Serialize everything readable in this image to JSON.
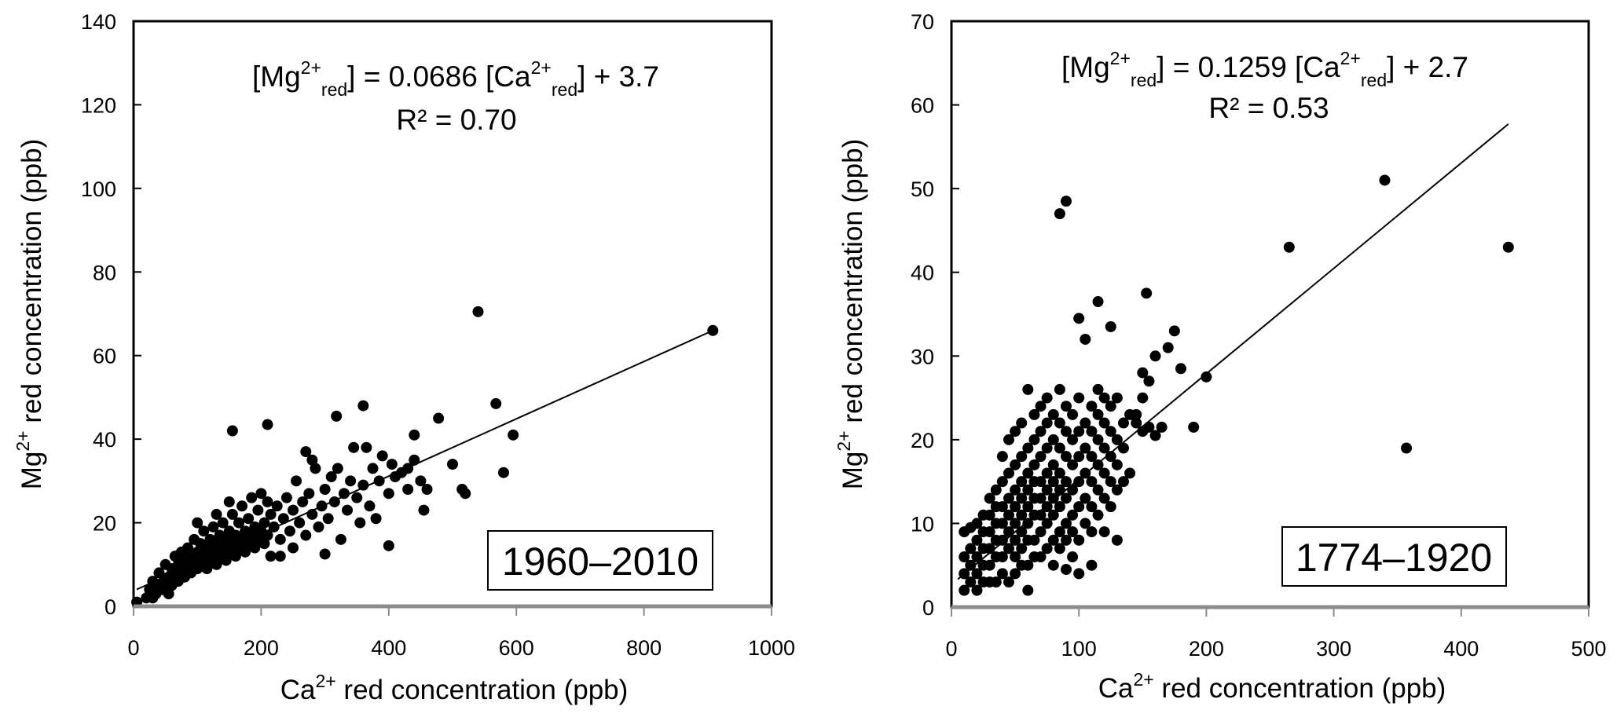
{
  "chart_data": [
    {
      "type": "scatter",
      "panel_label": "1960–2010",
      "xlabel": {
        "base": "Ca",
        "sup": "2+",
        "rest": " red concentration (ppb)"
      },
      "ylabel": {
        "base": "Mg",
        "sup": "2+",
        "rest": " red concentration (ppb)"
      },
      "xlim": [
        0,
        1000
      ],
      "ylim": [
        0,
        140
      ],
      "x_ticks": [
        0,
        200,
        400,
        600,
        800,
        1000
      ],
      "y_ticks": [
        0,
        20,
        40,
        60,
        80,
        100,
        120,
        140
      ],
      "grid": false,
      "equation": {
        "a": "[Mg",
        "sup1": "2+",
        "sub1": "red",
        "b": "] = 0.0686 [Ca",
        "sup2": "2+",
        "sub2": "red",
        "c": "] + 3.7"
      },
      "r2": "R² = 0.70",
      "fit": {
        "slope": 0.0686,
        "intercept": 3.7,
        "x_range": [
          5,
          910
        ]
      },
      "points": [
        [
          5,
          1
        ],
        [
          20,
          2
        ],
        [
          25,
          4
        ],
        [
          30,
          6
        ],
        [
          30,
          2
        ],
        [
          35,
          3
        ],
        [
          40,
          5
        ],
        [
          40,
          8
        ],
        [
          45,
          4
        ],
        [
          50,
          6
        ],
        [
          50,
          10
        ],
        [
          55,
          7
        ],
        [
          55,
          3
        ],
        [
          60,
          9
        ],
        [
          60,
          5
        ],
        [
          65,
          12
        ],
        [
          65,
          8
        ],
        [
          70,
          6
        ],
        [
          70,
          10
        ],
        [
          75,
          13
        ],
        [
          75,
          9
        ],
        [
          80,
          11
        ],
        [
          80,
          7
        ],
        [
          85,
          14
        ],
        [
          85,
          10
        ],
        [
          90,
          12
        ],
        [
          90,
          8
        ],
        [
          95,
          16
        ],
        [
          95,
          11
        ],
        [
          100,
          13
        ],
        [
          100,
          9
        ],
        [
          100,
          20
        ],
        [
          105,
          15
        ],
        [
          105,
          10
        ],
        [
          110,
          18
        ],
        [
          110,
          12
        ],
        [
          115,
          14
        ],
        [
          115,
          9
        ],
        [
          120,
          16
        ],
        [
          120,
          11
        ],
        [
          125,
          19
        ],
        [
          125,
          13
        ],
        [
          130,
          15
        ],
        [
          130,
          10
        ],
        [
          130,
          22
        ],
        [
          135,
          17
        ],
        [
          135,
          12
        ],
        [
          140,
          14
        ],
        [
          140,
          20
        ],
        [
          145,
          16
        ],
        [
          145,
          11
        ],
        [
          150,
          18
        ],
        [
          150,
          13
        ],
        [
          150,
          25
        ],
        [
          155,
          22
        ],
        [
          155,
          15
        ],
        [
          160,
          17
        ],
        [
          160,
          12
        ],
        [
          165,
          20
        ],
        [
          165,
          14
        ],
        [
          170,
          24
        ],
        [
          170,
          16
        ],
        [
          175,
          18
        ],
        [
          175,
          13
        ],
        [
          180,
          21
        ],
        [
          180,
          15
        ],
        [
          185,
          26
        ],
        [
          185,
          17
        ],
        [
          190,
          19
        ],
        [
          190,
          14
        ],
        [
          195,
          23
        ],
        [
          195,
          16
        ],
        [
          200,
          27
        ],
        [
          200,
          18
        ],
        [
          205,
          20
        ],
        [
          205,
          15
        ],
        [
          210,
          25
        ],
        [
          210,
          17
        ],
        [
          215,
          22
        ],
        [
          215,
          12
        ],
        [
          220,
          19
        ],
        [
          225,
          24
        ],
        [
          230,
          16
        ],
        [
          230,
          12
        ],
        [
          235,
          21
        ],
        [
          240,
          26
        ],
        [
          245,
          18
        ],
        [
          250,
          23
        ],
        [
          250,
          14
        ],
        [
          255,
          30
        ],
        [
          260,
          20
        ],
        [
          265,
          25
        ],
        [
          270,
          17
        ],
        [
          270,
          37
        ],
        [
          275,
          27
        ],
        [
          280,
          22
        ],
        [
          280,
          35
        ],
        [
          285,
          33
        ],
        [
          290,
          19
        ],
        [
          295,
          24
        ],
        [
          300,
          28
        ],
        [
          300,
          12.5
        ],
        [
          305,
          21
        ],
        [
          310,
          31
        ],
        [
          315,
          25
        ],
        [
          318,
          45.5
        ],
        [
          320,
          33
        ],
        [
          325,
          16
        ],
        [
          330,
          27
        ],
        [
          335,
          23
        ],
        [
          340,
          30
        ],
        [
          345,
          38
        ],
        [
          350,
          26
        ],
        [
          355,
          20
        ],
        [
          360,
          48
        ],
        [
          360,
          29
        ],
        [
          365,
          38
        ],
        [
          370,
          24
        ],
        [
          375,
          33
        ],
        [
          380,
          21
        ],
        [
          385,
          30
        ],
        [
          390,
          36
        ],
        [
          400,
          27
        ],
        [
          400,
          14.5
        ],
        [
          405,
          34
        ],
        [
          410,
          31
        ],
        [
          420,
          32
        ],
        [
          430,
          28
        ],
        [
          430,
          33
        ],
        [
          440,
          35
        ],
        [
          440,
          41
        ],
        [
          450,
          30
        ],
        [
          455,
          23
        ],
        [
          460,
          28
        ],
        [
          478,
          45
        ],
        [
          500,
          34
        ],
        [
          515,
          28
        ],
        [
          520,
          27
        ],
        [
          540,
          70.5
        ],
        [
          568,
          48.5
        ],
        [
          580,
          32
        ],
        [
          595,
          41
        ],
        [
          908,
          66
        ],
        [
          155,
          42
        ],
        [
          210,
          43.5
        ]
      ]
    },
    {
      "type": "scatter",
      "panel_label": "1774–1920",
      "xlabel": {
        "base": "Ca",
        "sup": "2+",
        "rest": " red concentration (ppb)"
      },
      "ylabel": {
        "base": "Mg",
        "sup": "2+",
        "rest": " red concentration (ppb)"
      },
      "xlim": [
        0,
        500
      ],
      "ylim": [
        0,
        70
      ],
      "x_ticks": [
        0,
        100,
        200,
        300,
        400,
        500
      ],
      "y_ticks": [
        0,
        10,
        20,
        30,
        40,
        50,
        60,
        70
      ],
      "grid": false,
      "equation": {
        "a": "[Mg",
        "sup1": "2+",
        "sub1": "red",
        "b": "]  = 0.1259 [Ca",
        "sup2": "2+",
        "sub2": "red",
        "c": "] + 2.7"
      },
      "r2": "R² = 0.53",
      "fit": {
        "slope": 0.1259,
        "intercept": 2.7,
        "x_range": [
          5,
          437
        ]
      },
      "points": [
        [
          10,
          2
        ],
        [
          10,
          4
        ],
        [
          10,
          6
        ],
        [
          10,
          9
        ],
        [
          15,
          3
        ],
        [
          15,
          5
        ],
        [
          15,
          7
        ],
        [
          15,
          9.5
        ],
        [
          20,
          2
        ],
        [
          20,
          4
        ],
        [
          20,
          6
        ],
        [
          20,
          8
        ],
        [
          20,
          10
        ],
        [
          25,
          3
        ],
        [
          25,
          5
        ],
        [
          25,
          7
        ],
        [
          25,
          9
        ],
        [
          25,
          11
        ],
        [
          30,
          3
        ],
        [
          30,
          5
        ],
        [
          30,
          7
        ],
        [
          30,
          9
        ],
        [
          30,
          11
        ],
        [
          30,
          13
        ],
        [
          35,
          3
        ],
        [
          35,
          6
        ],
        [
          35,
          8
        ],
        [
          35,
          10
        ],
        [
          35,
          12
        ],
        [
          35,
          14
        ],
        [
          40,
          4
        ],
        [
          40,
          6
        ],
        [
          40,
          8
        ],
        [
          40,
          10
        ],
        [
          40,
          12
        ],
        [
          40,
          15
        ],
        [
          40,
          18
        ],
        [
          45,
          3
        ],
        [
          45,
          7
        ],
        [
          45,
          9
        ],
        [
          45,
          11
        ],
        [
          45,
          13
        ],
        [
          45,
          16
        ],
        [
          45,
          20
        ],
        [
          50,
          4
        ],
        [
          50,
          6
        ],
        [
          50,
          8
        ],
        [
          50,
          10
        ],
        [
          50,
          12
        ],
        [
          50,
          14
        ],
        [
          50,
          17
        ],
        [
          50,
          21
        ],
        [
          55,
          5
        ],
        [
          55,
          7
        ],
        [
          55,
          9
        ],
        [
          55,
          11
        ],
        [
          55,
          13
        ],
        [
          55,
          15
        ],
        [
          55,
          18
        ],
        [
          55,
          22
        ],
        [
          60,
          2
        ],
        [
          60,
          5
        ],
        [
          60,
          8
        ],
        [
          60,
          10
        ],
        [
          60,
          12
        ],
        [
          60,
          14
        ],
        [
          60,
          16
        ],
        [
          60,
          19
        ],
        [
          60,
          26
        ],
        [
          65,
          6
        ],
        [
          65,
          8
        ],
        [
          65,
          11
        ],
        [
          65,
          13
        ],
        [
          65,
          15
        ],
        [
          65,
          17
        ],
        [
          65,
          20
        ],
        [
          65,
          23
        ],
        [
          70,
          6
        ],
        [
          70,
          9
        ],
        [
          70,
          11
        ],
        [
          70,
          13
        ],
        [
          70,
          15
        ],
        [
          70,
          18
        ],
        [
          70,
          21
        ],
        [
          70,
          24
        ],
        [
          75,
          7
        ],
        [
          75,
          10
        ],
        [
          75,
          12
        ],
        [
          75,
          14
        ],
        [
          75,
          16
        ],
        [
          75,
          19
        ],
        [
          75,
          22
        ],
        [
          75,
          25
        ],
        [
          80,
          5
        ],
        [
          80,
          8
        ],
        [
          80,
          11
        ],
        [
          80,
          13
        ],
        [
          80,
          15
        ],
        [
          80,
          17
        ],
        [
          80,
          20
        ],
        [
          80,
          23
        ],
        [
          85,
          7
        ],
        [
          85,
          9
        ],
        [
          85,
          12
        ],
        [
          85,
          14
        ],
        [
          85,
          16
        ],
        [
          85,
          19
        ],
        [
          85,
          22
        ],
        [
          85,
          26
        ],
        [
          85,
          47
        ],
        [
          90,
          4.5
        ],
        [
          90,
          8
        ],
        [
          90,
          10
        ],
        [
          90,
          13
        ],
        [
          90,
          15
        ],
        [
          90,
          18
        ],
        [
          90,
          21
        ],
        [
          90,
          24
        ],
        [
          90,
          48.5
        ],
        [
          95,
          6
        ],
        [
          95,
          9
        ],
        [
          95,
          11
        ],
        [
          95,
          14
        ],
        [
          95,
          17
        ],
        [
          95,
          20
        ],
        [
          95,
          23
        ],
        [
          100,
          4
        ],
        [
          100,
          8
        ],
        [
          100,
          12
        ],
        [
          100,
          15
        ],
        [
          100,
          18
        ],
        [
          100,
          21
        ],
        [
          100,
          25
        ],
        [
          100,
          34.5
        ],
        [
          105,
          10
        ],
        [
          105,
          13
        ],
        [
          105,
          16
        ],
        [
          105,
          19
        ],
        [
          105,
          22
        ],
        [
          105,
          32
        ],
        [
          110,
          5
        ],
        [
          110,
          9
        ],
        [
          110,
          12
        ],
        [
          110,
          15
        ],
        [
          110,
          18
        ],
        [
          110,
          21
        ],
        [
          110,
          24
        ],
        [
          115,
          11
        ],
        [
          115,
          14
        ],
        [
          115,
          17
        ],
        [
          115,
          20
        ],
        [
          115,
          23
        ],
        [
          115,
          26
        ],
        [
          115,
          36.5
        ],
        [
          120,
          9
        ],
        [
          120,
          13
        ],
        [
          120,
          16
        ],
        [
          120,
          19
        ],
        [
          120,
          22
        ],
        [
          120,
          25
        ],
        [
          125,
          12
        ],
        [
          125,
          15
        ],
        [
          125,
          18
        ],
        [
          125,
          21
        ],
        [
          125,
          24
        ],
        [
          125,
          33.5
        ],
        [
          130,
          8
        ],
        [
          130,
          14
        ],
        [
          130,
          17
        ],
        [
          130,
          20
        ],
        [
          130,
          25
        ],
        [
          135,
          15
        ],
        [
          135,
          19
        ],
        [
          135,
          22
        ],
        [
          140,
          16
        ],
        [
          140,
          23
        ],
        [
          145,
          22
        ],
        [
          145,
          23
        ],
        [
          150,
          21
        ],
        [
          150,
          25
        ],
        [
          150,
          28
        ],
        [
          153,
          37.5
        ],
        [
          155,
          27
        ],
        [
          155,
          21.5
        ],
        [
          160,
          30
        ],
        [
          160,
          20.5
        ],
        [
          165,
          21.5
        ],
        [
          170,
          31
        ],
        [
          175,
          33
        ],
        [
          180,
          28.5
        ],
        [
          190,
          21.5
        ],
        [
          200,
          27.5
        ],
        [
          265,
          43
        ],
        [
          340,
          51
        ],
        [
          357,
          19
        ],
        [
          437,
          43
        ]
      ]
    }
  ]
}
